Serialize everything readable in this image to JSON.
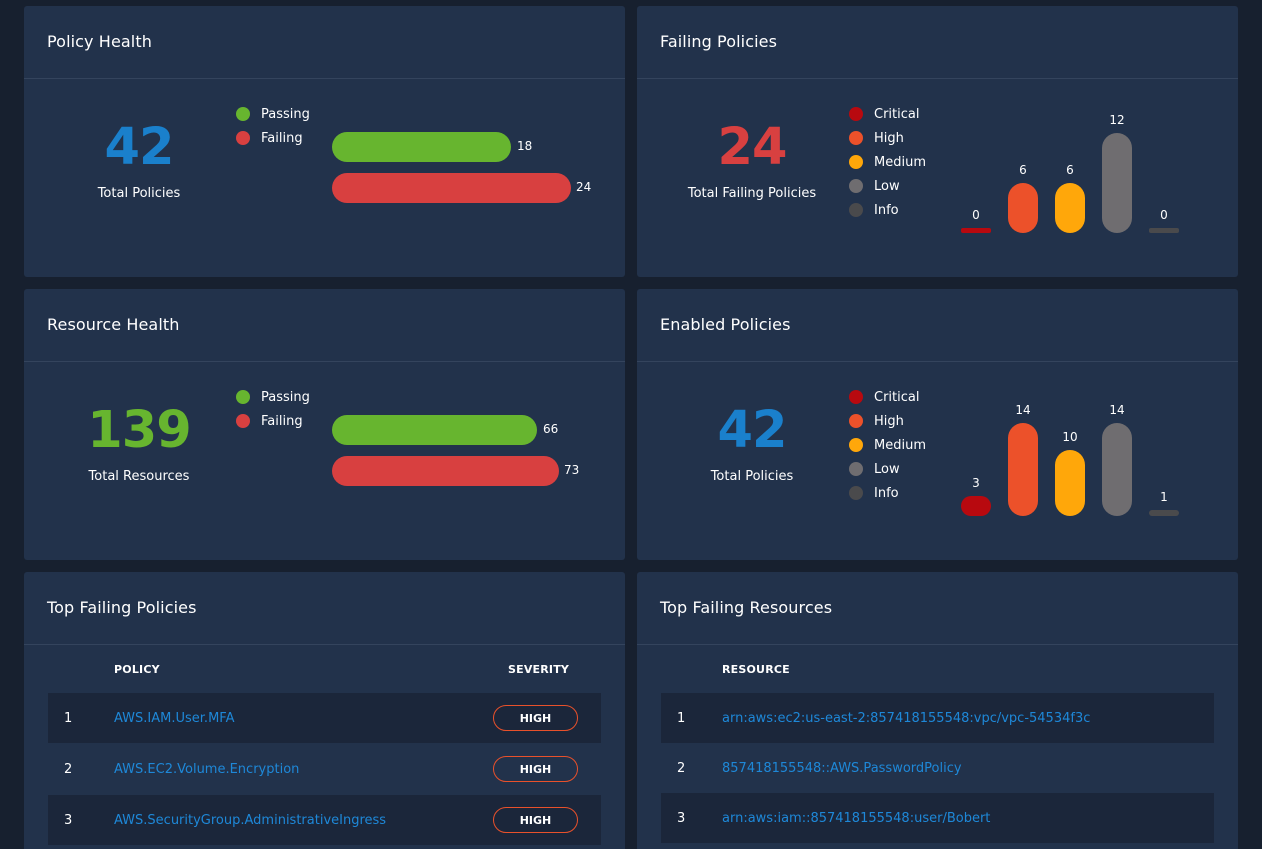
{
  "policy_health": {
    "title": "Policy Health",
    "total": "42",
    "total_label": "Total Policies",
    "legend": [
      {
        "label": "Passing",
        "color": "#67b52f"
      },
      {
        "label": "Failing",
        "color": "#d84040"
      }
    ],
    "passing_value": "18",
    "failing_value": "24"
  },
  "failing_policies": {
    "title": "Failing Policies",
    "total": "24",
    "total_label": "Total Failing Policies",
    "legend": [
      {
        "label": "Critical",
        "color": "#b8090f"
      },
      {
        "label": "High",
        "color": "#ec512a"
      },
      {
        "label": "Medium",
        "color": "#ffa70a"
      },
      {
        "label": "Low",
        "color": "#6f6d70"
      },
      {
        "label": "Info",
        "color": "#4a4a4c"
      }
    ],
    "values": [
      "0",
      "6",
      "6",
      "12",
      "0"
    ]
  },
  "resource_health": {
    "title": "Resource Health",
    "total": "139",
    "total_label": "Total Resources",
    "legend": [
      {
        "label": "Passing",
        "color": "#67b52f"
      },
      {
        "label": "Failing",
        "color": "#d84040"
      }
    ],
    "passing_value": "66",
    "failing_value": "73"
  },
  "enabled_policies": {
    "title": "Enabled Policies",
    "total": "42",
    "total_label": "Total Policies",
    "legend": [
      {
        "label": "Critical",
        "color": "#b8090f"
      },
      {
        "label": "High",
        "color": "#ec512a"
      },
      {
        "label": "Medium",
        "color": "#ffa70a"
      },
      {
        "label": "Low",
        "color": "#6f6d70"
      },
      {
        "label": "Info",
        "color": "#4a4a4c"
      }
    ],
    "values": [
      "3",
      "14",
      "10",
      "14",
      "1"
    ]
  },
  "top_failing_policies": {
    "title": "Top Failing Policies",
    "col_policy": "POLICY",
    "col_severity": "SEVERITY",
    "rows": [
      {
        "num": "1",
        "policy": "AWS.IAM.User.MFA",
        "severity": "HIGH"
      },
      {
        "num": "2",
        "policy": "AWS.EC2.Volume.Encryption",
        "severity": "HIGH"
      },
      {
        "num": "3",
        "policy": "AWS.SecurityGroup.AdministrativeIngress",
        "severity": "HIGH"
      }
    ]
  },
  "top_failing_resources": {
    "title": "Top Failing Resources",
    "col_resource": "RESOURCE",
    "rows": [
      {
        "num": "1",
        "resource": "arn:aws:ec2:us-east-2:857418155548:vpc/vpc-54534f3c"
      },
      {
        "num": "2",
        "resource": "857418155548::AWS.PasswordPolicy"
      },
      {
        "num": "3",
        "resource": "arn:aws:iam::857418155548:user/Bobert"
      }
    ]
  },
  "colors": {
    "blue": "#1a80cc",
    "red": "#d84040",
    "green": "#67b52f"
  }
}
